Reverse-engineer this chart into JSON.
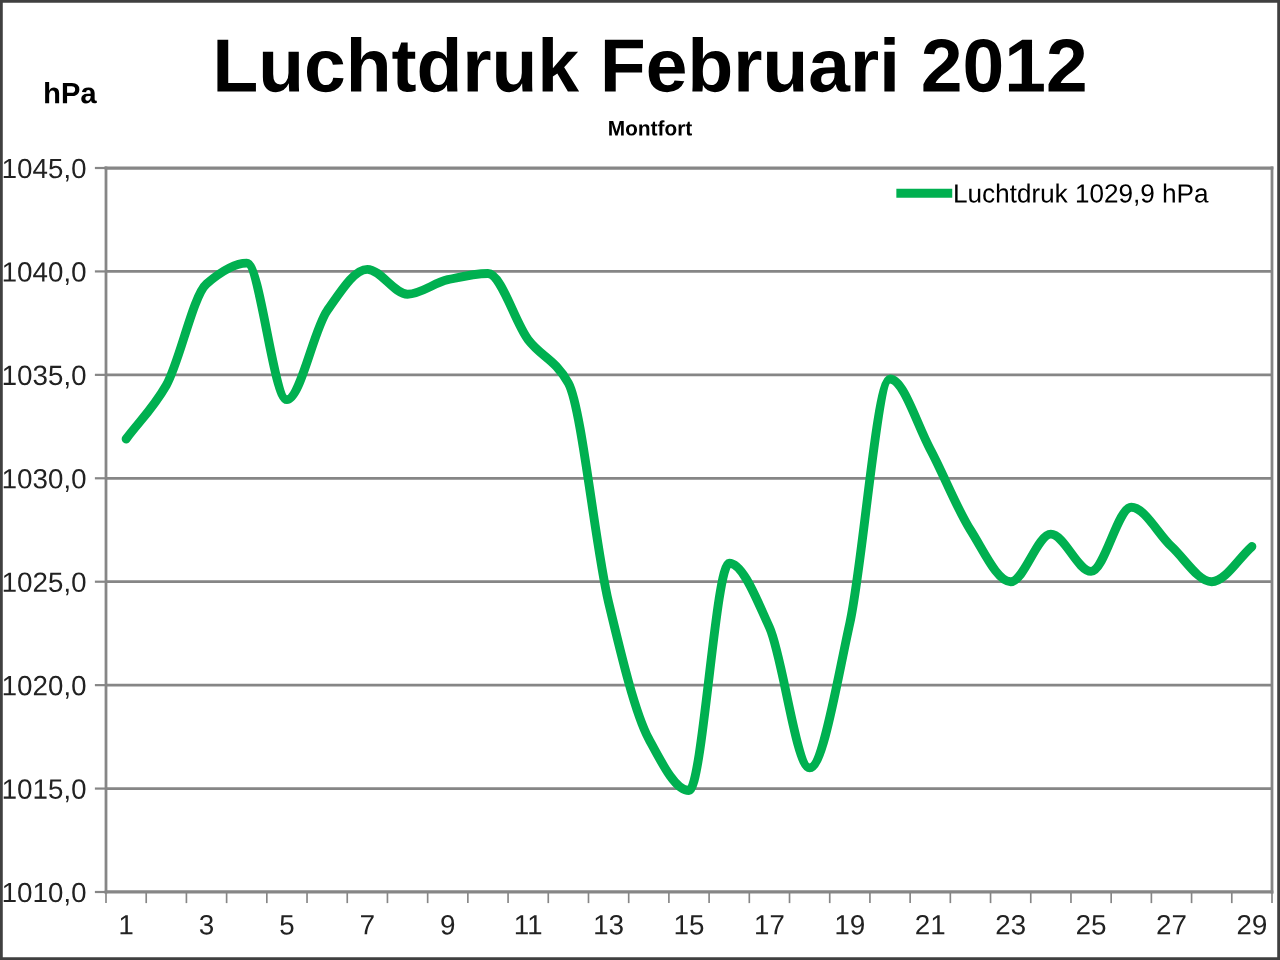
{
  "chart_data": {
    "type": "line",
    "title": "Luchtdruk Februari 2012",
    "subtitle": "Montfort",
    "ylabel": "hPa",
    "categories": [
      "1",
      null,
      "3",
      null,
      "5",
      null,
      "7",
      null,
      "9",
      null,
      "11",
      null,
      "13",
      null,
      "15",
      null,
      "17",
      null,
      "19",
      null,
      "21",
      null,
      "23",
      null,
      "25",
      null,
      "27",
      null,
      "29"
    ],
    "series": [
      {
        "name": "Luchtdruk 1029,9 hPa",
        "color": "#00b050",
        "values": [
          1031.9,
          1034.5,
          1039.4,
          1040.4,
          1033.8,
          1038.1,
          1040.1,
          1038.9,
          1039.6,
          1039.9,
          1036.7,
          1034.6,
          1024.0,
          1017.4,
          1014.9,
          1025.9,
          1022.8,
          1016.0,
          1023.0,
          1034.8,
          1031.4,
          1027.5,
          1025.0,
          1027.3,
          1025.5,
          1028.6,
          1026.7,
          1025.0,
          1026.7
        ]
      }
    ],
    "ylim": [
      1010,
      1045
    ],
    "yticks": [
      {
        "value": 1010,
        "label": "1010,0"
      },
      {
        "value": 1015,
        "label": "1015,0"
      },
      {
        "value": 1020,
        "label": "1020,0"
      },
      {
        "value": 1025,
        "label": "1025,0"
      },
      {
        "value": 1030,
        "label": "1030,0"
      },
      {
        "value": 1035,
        "label": "1035,0"
      },
      {
        "value": 1040,
        "label": "1040,0"
      },
      {
        "value": 1045,
        "label": "1045,0"
      }
    ],
    "grid": "y",
    "legend": "top right",
    "line_style": "solid"
  }
}
